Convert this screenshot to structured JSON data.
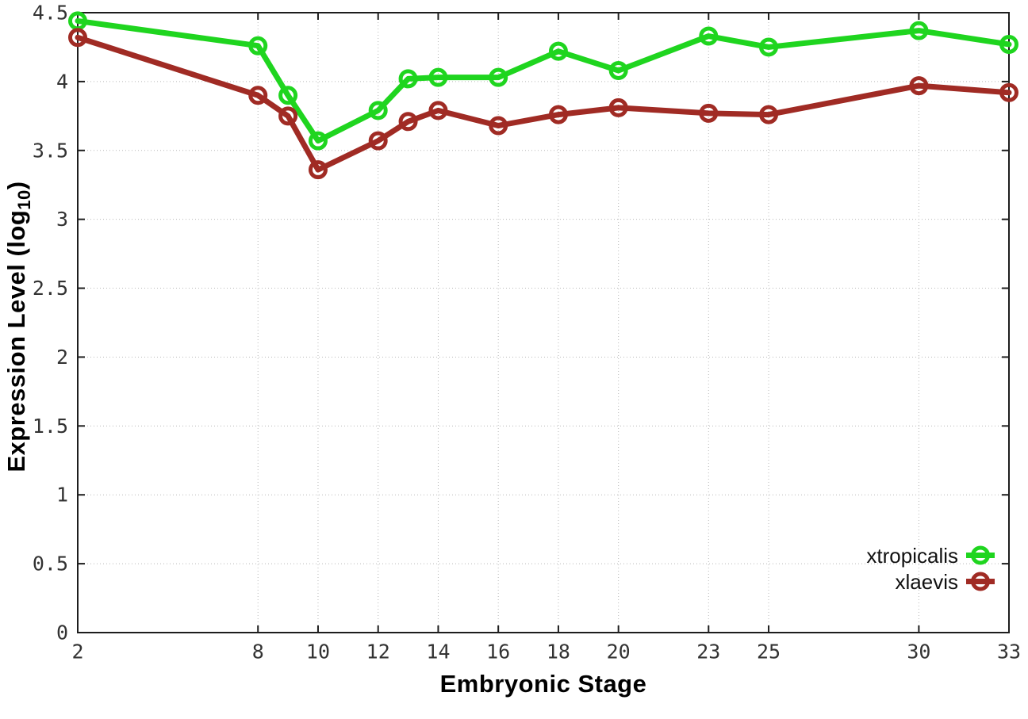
{
  "figure": {
    "background": "#ffffff"
  },
  "chart_data": {
    "type": "line",
    "title": "",
    "xlabel": "Embryonic Stage",
    "ylabel": "Expression Level (log10)",
    "ylabel_parts": {
      "prefix": "Expression Level (log",
      "sub": "10",
      "suffix": ")"
    },
    "xlim": [
      2,
      33
    ],
    "ylim": [
      0,
      4.5
    ],
    "grid": true,
    "legend_position": "inside bottom-right",
    "x": [
      2,
      8,
      9,
      10,
      12,
      13,
      14,
      16,
      18,
      20,
      23,
      25,
      30,
      33
    ],
    "xticks": [
      2,
      8,
      10,
      12,
      14,
      16,
      18,
      20,
      23,
      25,
      30,
      33
    ],
    "xtick_labels": [
      "2",
      "8",
      "10",
      "12",
      "14",
      "16",
      "18",
      "20",
      "23",
      "25",
      "30",
      "33"
    ],
    "yticks": [
      0,
      0.5,
      1,
      1.5,
      2,
      2.5,
      3,
      3.5,
      4,
      4.5
    ],
    "ytick_labels": [
      "0",
      "0.5",
      "1",
      "1.5",
      "2",
      "2.5",
      "3",
      "3.5",
      "4",
      "4.5"
    ],
    "series": [
      {
        "name": "xtropicalis",
        "color": "#1fd51f",
        "marker": "open-circle",
        "values": [
          4.44,
          4.26,
          3.9,
          3.57,
          3.79,
          4.02,
          4.03,
          4.03,
          4.22,
          4.08,
          4.33,
          4.25,
          4.37,
          4.27
        ]
      },
      {
        "name": "xlaevis",
        "color": "#a02b24",
        "marker": "open-circle",
        "values": [
          4.32,
          3.9,
          3.75,
          3.36,
          3.57,
          3.71,
          3.79,
          3.68,
          3.76,
          3.81,
          3.77,
          3.76,
          3.97,
          3.92
        ]
      }
    ]
  },
  "style": {
    "grid_color": "#b8b8b8",
    "axis_color": "#1d1d1d",
    "tick_label_color": "#333333"
  }
}
